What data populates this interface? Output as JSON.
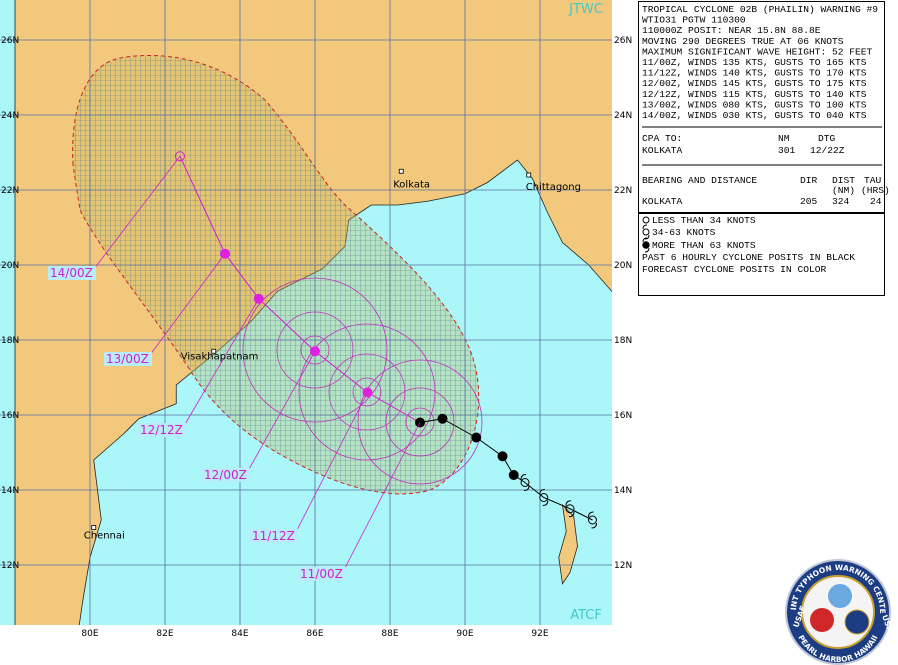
{
  "map": {
    "lat_ticks": [
      {
        "value": 26,
        "label": "26N"
      },
      {
        "value": 24,
        "label": "24N"
      },
      {
        "value": 22,
        "label": "22N"
      },
      {
        "value": 20,
        "label": "20N"
      },
      {
        "value": 18,
        "label": "18N"
      },
      {
        "value": 16,
        "label": "16N"
      },
      {
        "value": 14,
        "label": "14N"
      },
      {
        "value": 12,
        "label": "12N"
      }
    ],
    "lon_ticks": [
      {
        "value": 80,
        "label": "80E"
      },
      {
        "value": 82,
        "label": "82E"
      },
      {
        "value": 84,
        "label": "84E"
      },
      {
        "value": 86,
        "label": "86E"
      },
      {
        "value": 88,
        "label": "88E"
      },
      {
        "value": 90,
        "label": "90E"
      },
      {
        "value": 92,
        "label": "92E"
      }
    ],
    "watermark_top": "JTWC",
    "watermark_bottom": "ATCF",
    "cities": [
      {
        "name": "Kolkata",
        "lat": 22.5,
        "lon": 88.3
      },
      {
        "name": "Chittagong",
        "lat": 22.4,
        "lon": 91.7
      },
      {
        "name": "Visakhapatnam",
        "lat": 17.7,
        "lon": 83.3
      },
      {
        "name": "Chennai",
        "lat": 13.0,
        "lon": 80.1
      }
    ]
  },
  "track": {
    "past_over_63kt": [
      {
        "lat": 15.8,
        "lon": 88.8
      },
      {
        "lat": 15.9,
        "lon": 89.4
      },
      {
        "lat": 15.4,
        "lon": 90.3
      },
      {
        "lat": 14.9,
        "lon": 91.0
      },
      {
        "lat": 14.4,
        "lon": 91.3
      }
    ],
    "past_34_63kt": [
      {
        "lat": 14.2,
        "lon": 91.6
      },
      {
        "lat": 13.8,
        "lon": 92.1
      },
      {
        "lat": 13.5,
        "lon": 92.8
      },
      {
        "lat": 13.2,
        "lon": 93.4
      }
    ],
    "forecast": [
      {
        "label": "11/00Z",
        "lat": 15.8,
        "lon": 88.8
      },
      {
        "label": "11/12Z",
        "lat": 16.6,
        "lon": 87.4
      },
      {
        "label": "12/00Z",
        "lat": 17.7,
        "lon": 86.0
      },
      {
        "label": "12/12Z",
        "lat": 19.1,
        "lon": 84.5
      },
      {
        "label": "13/00Z",
        "lat": 20.3,
        "lon": 83.6
      },
      {
        "label": "14/00Z",
        "lat": 22.9,
        "lon": 82.4
      }
    ]
  },
  "warning": {
    "lines": [
      "TROPICAL CYCLONE 02B (PHAILIN) WARNING #9",
      "WTIO31 PGTW 110300",
      "110000Z POSIT: NEAR 15.8N 88.8E",
      "MOVING 290 DEGREES TRUE AT 06 KNOTS",
      "MAXIMUM SIGNIFICANT WAVE HEIGHT: 52 FEET",
      "11/00Z, WINDS 135 KTS, GUSTS TO 165 KTS",
      "11/12Z, WINDS 140 KTS, GUSTS TO 170 KTS",
      "12/00Z, WINDS 145 KTS, GUSTS TO 175 KTS",
      "12/12Z, WINDS 115 KTS, GUSTS TO 140 KTS",
      "13/00Z, WINDS 080 KTS, GUSTS TO 100 KTS",
      "14/00Z, WINDS 030 KTS, GUSTS TO 040 KTS"
    ],
    "cpa": {
      "header": [
        "CPA TO:",
        "NM",
        "DTG"
      ],
      "row": [
        "KOLKATA",
        301,
        "12/22Z"
      ]
    },
    "bearing": {
      "header": [
        "BEARING AND DISTANCE",
        "DIR",
        "DIST",
        "TAU"
      ],
      "units": [
        "(NM)",
        "(HRS)"
      ],
      "row": [
        "KOLKATA",
        205,
        324,
        24
      ]
    }
  },
  "legend": [
    "LESS THAN 34 KNOTS",
    "34-63 KNOTS",
    "MORE THAN 63 KNOTS",
    "PAST 6 HOURLY CYCLONE POSITS IN BLACK",
    "FORECAST CYCLONE POSITS IN COLOR"
  ],
  "logo": {
    "top": "JOINT TYPHOON WARNING CENTER",
    "bottom": "PEARL HARBOR HAWAII",
    "left": "USAF",
    "right": "USN"
  }
}
